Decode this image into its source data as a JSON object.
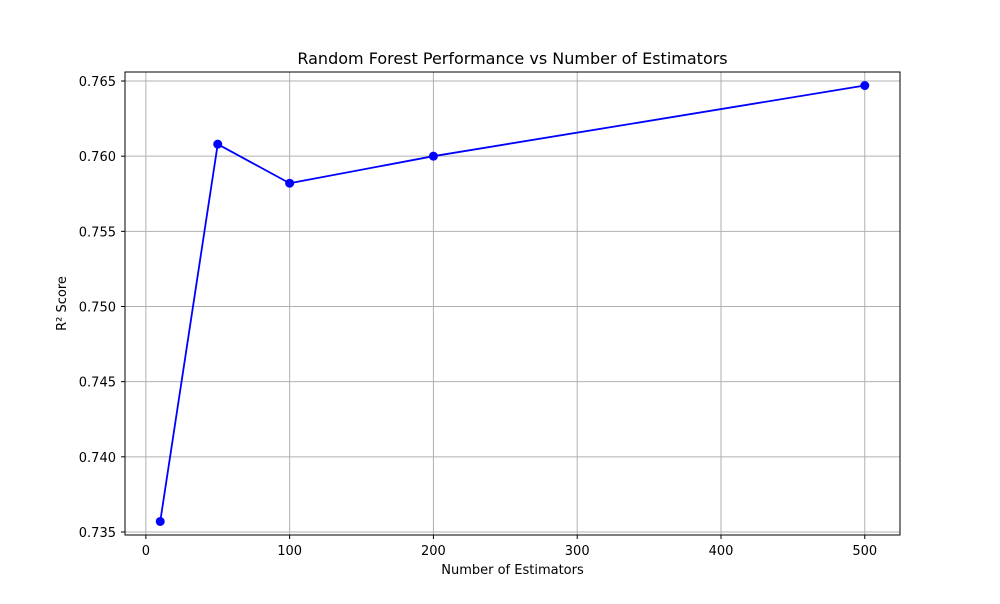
{
  "chart_data": {
    "type": "line",
    "title": "Random Forest Performance vs Number of Estimators",
    "xlabel": "Number of Estimators",
    "ylabel": "R² Score",
    "x": [
      10,
      50,
      100,
      200,
      500
    ],
    "series": [
      {
        "values": [
          0.7357,
          0.7608,
          0.7582,
          0.76,
          0.7647
        ],
        "color": "#0000ff",
        "marker": "circle"
      }
    ],
    "xlim": [
      -14.5,
      524.5
    ],
    "ylim": [
      0.7348,
      0.7656
    ],
    "xticks": [
      0,
      100,
      200,
      300,
      400,
      500
    ],
    "xtick_labels": [
      "0",
      "100",
      "200",
      "300",
      "400",
      "500"
    ],
    "yticks": [
      0.735,
      0.74,
      0.745,
      0.75,
      0.755,
      0.76,
      0.765
    ],
    "ytick_labels": [
      "0.735",
      "0.740",
      "0.745",
      "0.750",
      "0.755",
      "0.760",
      "0.765"
    ],
    "grid": true,
    "grid_color": "#b0b0b0",
    "legend": false
  }
}
